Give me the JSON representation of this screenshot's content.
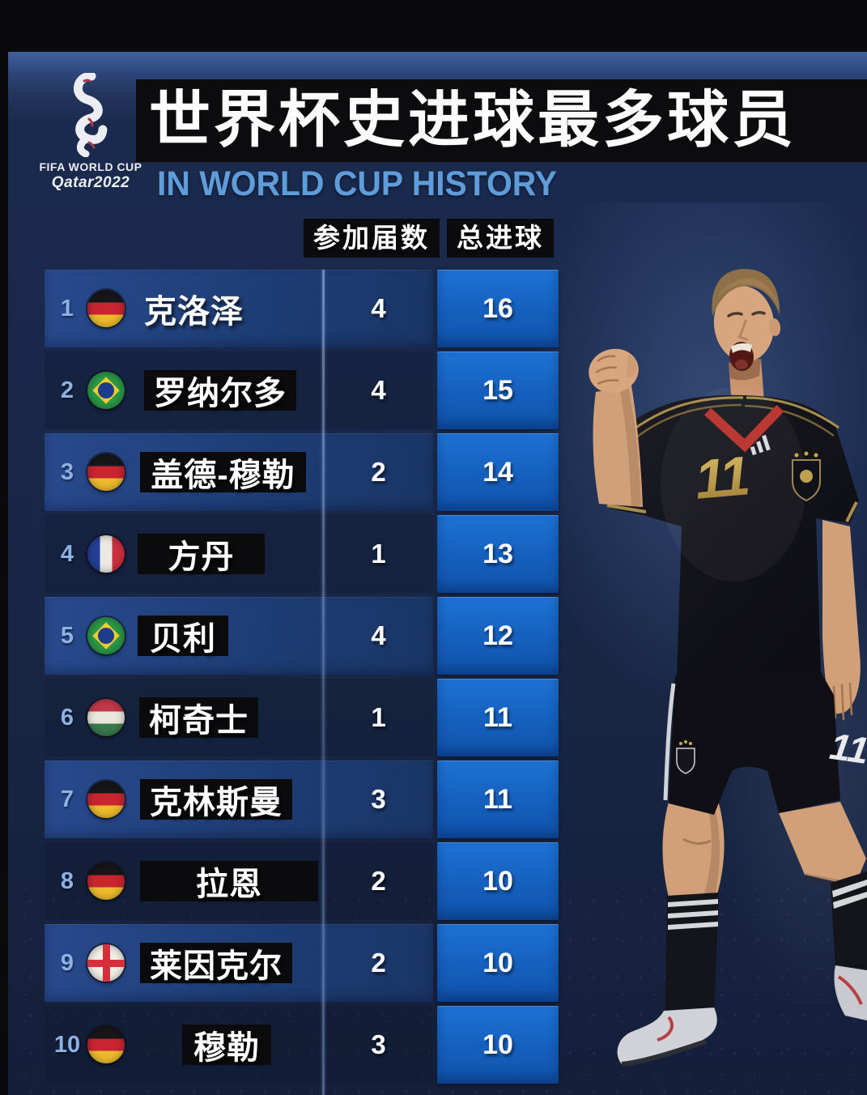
{
  "colors": {
    "page_black": "#0a0a0c",
    "backdrop_navy": "#1a2a4e",
    "panel_blue": "#1e3d75",
    "goals_box_blue": "#1565c4",
    "strip_black": "#0b0b0d",
    "subtitle_blue": "#5f9cda",
    "rank_blue": "#8cb1e2"
  },
  "logo": {
    "mark": "fifa-qatar-2022-emblem",
    "line1": "FIFA WORLD CUP",
    "line2": "Qatar2022"
  },
  "header": {
    "title": "世界杯史进球最多球员",
    "subtitle": "IN WORLD CUP HISTORY"
  },
  "table_headers": {
    "appearances": "参加届数",
    "goals": "总进球"
  },
  "photo": {
    "player_shirt_number": "11"
  },
  "chart_data": {
    "type": "table",
    "title": "世界杯史进球最多球员",
    "subtitle": "IN WORLD CUP HISTORY",
    "column_headers": [
      "参加届数",
      "总进球"
    ],
    "rows": [
      {
        "rank": "1",
        "country": "germany",
        "player": "克洛泽",
        "appearances": "4",
        "goals": "16"
      },
      {
        "rank": "2",
        "country": "brazil",
        "player": "罗纳尔多",
        "appearances": "4",
        "goals": "15"
      },
      {
        "rank": "3",
        "country": "germany",
        "player": "盖德-穆勒",
        "appearances": "2",
        "goals": "14"
      },
      {
        "rank": "4",
        "country": "france",
        "player": "方丹",
        "appearances": "1",
        "goals": "13"
      },
      {
        "rank": "5",
        "country": "brazil",
        "player": "贝利",
        "appearances": "4",
        "goals": "12"
      },
      {
        "rank": "6",
        "country": "hungary",
        "player": "柯奇士",
        "appearances": "1",
        "goals": "11"
      },
      {
        "rank": "7",
        "country": "germany",
        "player": "克林斯曼",
        "appearances": "3",
        "goals": "11"
      },
      {
        "rank": "8",
        "country": "germany",
        "player": "拉恩",
        "appearances": "2",
        "goals": "10"
      },
      {
        "rank": "9",
        "country": "england",
        "player": "莱因克尔",
        "appearances": "2",
        "goals": "10"
      },
      {
        "rank": "10",
        "country": "germany",
        "player": "穆勒",
        "appearances": "3",
        "goals": "10"
      }
    ]
  }
}
